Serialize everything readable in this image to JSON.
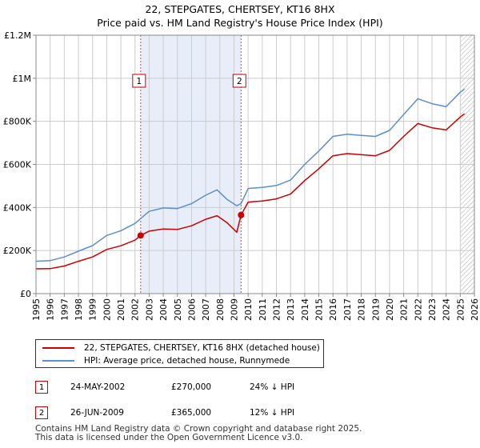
{
  "title_line1": "22, STEPGATES, CHERTSEY, KT16 8HX",
  "title_line2": "Price paid vs. HM Land Registry's House Price Index (HPI)",
  "colors": {
    "property": "#cc0000",
    "hpi": "#5b8fd0",
    "shade": "#e8eef9",
    "grid": "#cccccc",
    "marker_line": "#dd4444"
  },
  "chart_data": {
    "type": "line",
    "title": "22, STEPGATES, CHERTSEY, KT16 8HX — Price paid vs. HM Land Registry's House Price Index (HPI)",
    "xlabel": "",
    "ylabel": "",
    "xlim": [
      1995.0,
      2026.0
    ],
    "ylim": [
      0,
      1200000
    ],
    "x_ticks": [
      1995,
      1996,
      1997,
      1998,
      1999,
      2000,
      2001,
      2002,
      2003,
      2004,
      2005,
      2006,
      2007,
      2008,
      2009,
      2010,
      2011,
      2012,
      2013,
      2014,
      2015,
      2016,
      2017,
      2018,
      2019,
      2020,
      2021,
      2022,
      2023,
      2024,
      2025,
      2026
    ],
    "y_ticks": [
      {
        "value": 0,
        "label": "£0"
      },
      {
        "value": 200000,
        "label": "£200K"
      },
      {
        "value": 400000,
        "label": "£400K"
      },
      {
        "value": 600000,
        "label": "£600K"
      },
      {
        "value": 800000,
        "label": "£800K"
      },
      {
        "value": 1000000,
        "label": "£1M"
      },
      {
        "value": 1200000,
        "label": "£1.2M"
      }
    ],
    "grid": true,
    "shaded_ranges": [
      [
        2002.4,
        2009.5
      ]
    ],
    "future_hatch_from": 2025.0,
    "series": [
      {
        "name": "22, STEPGATES, CHERTSEY, KT16 8HX (detached house)",
        "color": "#cc0000",
        "points": [
          [
            1995.0,
            115000
          ],
          [
            1996.0,
            116000
          ],
          [
            1997.0,
            128000
          ],
          [
            1998.0,
            150000
          ],
          [
            1999.0,
            170000
          ],
          [
            2000.0,
            205000
          ],
          [
            2001.0,
            222000
          ],
          [
            2002.0,
            248000
          ],
          [
            2002.4,
            270000
          ],
          [
            2003.0,
            290000
          ],
          [
            2004.0,
            300000
          ],
          [
            2005.0,
            298000
          ],
          [
            2006.0,
            315000
          ],
          [
            2007.0,
            345000
          ],
          [
            2007.8,
            362000
          ],
          [
            2008.5,
            330000
          ],
          [
            2009.2,
            285000
          ],
          [
            2009.5,
            365000
          ],
          [
            2010.0,
            425000
          ],
          [
            2011.0,
            430000
          ],
          [
            2012.0,
            440000
          ],
          [
            2013.0,
            462000
          ],
          [
            2014.0,
            525000
          ],
          [
            2015.0,
            580000
          ],
          [
            2016.0,
            640000
          ],
          [
            2017.0,
            650000
          ],
          [
            2018.0,
            645000
          ],
          [
            2019.0,
            640000
          ],
          [
            2020.0,
            665000
          ],
          [
            2021.0,
            730000
          ],
          [
            2022.0,
            790000
          ],
          [
            2023.0,
            770000
          ],
          [
            2024.0,
            760000
          ],
          [
            2025.0,
            820000
          ],
          [
            2025.3,
            835000
          ]
        ]
      },
      {
        "name": "HPI: Average price, detached house, Runnymede",
        "color": "#5b8fd0",
        "points": [
          [
            1995.0,
            150000
          ],
          [
            1996.0,
            153000
          ],
          [
            1997.0,
            170000
          ],
          [
            1998.0,
            197000
          ],
          [
            1999.0,
            223000
          ],
          [
            2000.0,
            270000
          ],
          [
            2001.0,
            292000
          ],
          [
            2002.0,
            326000
          ],
          [
            2003.0,
            382000
          ],
          [
            2004.0,
            398000
          ],
          [
            2005.0,
            395000
          ],
          [
            2006.0,
            418000
          ],
          [
            2007.0,
            457000
          ],
          [
            2007.8,
            482000
          ],
          [
            2008.5,
            438000
          ],
          [
            2009.2,
            408000
          ],
          [
            2009.5,
            418000
          ],
          [
            2010.0,
            488000
          ],
          [
            2011.0,
            493000
          ],
          [
            2012.0,
            502000
          ],
          [
            2013.0,
            527000
          ],
          [
            2014.0,
            600000
          ],
          [
            2015.0,
            662000
          ],
          [
            2016.0,
            730000
          ],
          [
            2017.0,
            740000
          ],
          [
            2018.0,
            735000
          ],
          [
            2019.0,
            730000
          ],
          [
            2020.0,
            758000
          ],
          [
            2021.0,
            832000
          ],
          [
            2022.0,
            905000
          ],
          [
            2023.0,
            882000
          ],
          [
            2024.0,
            868000
          ],
          [
            2025.0,
            935000
          ],
          [
            2025.3,
            950000
          ]
        ]
      }
    ],
    "markers": [
      {
        "label": "1",
        "x": 2002.4,
        "y": 270000
      },
      {
        "label": "2",
        "x": 2009.5,
        "y": 365000
      }
    ]
  },
  "legend": {
    "property_label": "22, STEPGATES, CHERTSEY, KT16 8HX (detached house)",
    "hpi_label": "HPI: Average price, detached house, Runnymede"
  },
  "transactions": [
    {
      "num": "1",
      "date": "24-MAY-2002",
      "price": "£270,000",
      "diff": "24% ↓ HPI"
    },
    {
      "num": "2",
      "date": "26-JUN-2009",
      "price": "£365,000",
      "diff": "12% ↓ HPI"
    }
  ],
  "footer": {
    "line1": "Contains HM Land Registry data © Crown copyright and database right 2025.",
    "line2": "This data is licensed under the Open Government Licence v3.0."
  }
}
